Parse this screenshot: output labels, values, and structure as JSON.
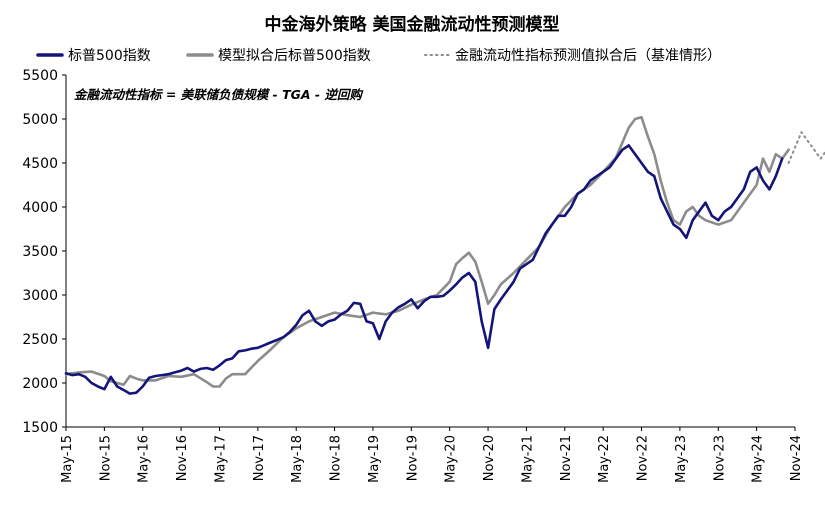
{
  "chart_data": {
    "type": "line",
    "title": "中金海外策略 美国金融流动性预测模型",
    "annotation": "金融流动性指标 = 美联储负债规模 - TGA - 逆回购",
    "ylim": [
      1500,
      5500
    ],
    "yticks": [
      1500,
      2000,
      2500,
      3000,
      3500,
      4000,
      4500,
      5000,
      5500
    ],
    "xticks": [
      "May-15",
      "Nov-15",
      "May-16",
      "Nov-16",
      "May-17",
      "Nov-17",
      "May-18",
      "Nov-18",
      "May-19",
      "Nov-19",
      "May-20",
      "Nov-20",
      "May-21",
      "Nov-21",
      "May-22",
      "Nov-22",
      "May-23",
      "Nov-23",
      "May-24",
      "Nov-24"
    ],
    "legend_position": "top",
    "grid": false,
    "series": [
      {
        "name": "标普500指数",
        "color": "#14147a",
        "style": "solid",
        "points": [
          [
            0,
            2110
          ],
          [
            0.5,
            2090
          ],
          [
            1,
            2100
          ],
          [
            1.5,
            2070
          ],
          [
            2,
            2000
          ],
          [
            2.5,
            1960
          ],
          [
            3,
            1930
          ],
          [
            3.5,
            2070
          ],
          [
            4,
            1960
          ],
          [
            4.5,
            1920
          ],
          [
            5,
            1880
          ],
          [
            5.5,
            1890
          ],
          [
            6,
            1960
          ],
          [
            6.5,
            2060
          ],
          [
            7,
            2080
          ],
          [
            7.5,
            2090
          ],
          [
            8,
            2100
          ],
          [
            8.5,
            2120
          ],
          [
            9,
            2140
          ],
          [
            9.5,
            2170
          ],
          [
            10,
            2130
          ],
          [
            10.5,
            2160
          ],
          [
            11,
            2170
          ],
          [
            11.5,
            2150
          ],
          [
            12,
            2200
          ],
          [
            12.5,
            2260
          ],
          [
            13,
            2280
          ],
          [
            13.5,
            2360
          ],
          [
            14,
            2370
          ],
          [
            14.5,
            2390
          ],
          [
            15,
            2400
          ],
          [
            15.5,
            2430
          ],
          [
            16,
            2460
          ],
          [
            16.5,
            2490
          ],
          [
            17,
            2520
          ],
          [
            17.5,
            2580
          ],
          [
            18,
            2660
          ],
          [
            18.5,
            2770
          ],
          [
            19,
            2820
          ],
          [
            19.5,
            2700
          ],
          [
            20,
            2650
          ],
          [
            20.5,
            2700
          ],
          [
            21,
            2720
          ],
          [
            21.5,
            2780
          ],
          [
            22,
            2820
          ],
          [
            22.5,
            2910
          ],
          [
            23,
            2900
          ],
          [
            23.5,
            2700
          ],
          [
            24,
            2680
          ],
          [
            24.5,
            2500
          ],
          [
            25,
            2700
          ],
          [
            25.5,
            2800
          ],
          [
            26,
            2860
          ],
          [
            26.5,
            2900
          ],
          [
            27,
            2950
          ],
          [
            27.5,
            2850
          ],
          [
            28,
            2930
          ],
          [
            28.5,
            2980
          ],
          [
            29,
            2980
          ],
          [
            29.5,
            2990
          ],
          [
            30,
            3050
          ],
          [
            30.5,
            3120
          ],
          [
            31,
            3200
          ],
          [
            31.5,
            3250
          ],
          [
            32,
            3150
          ],
          [
            32.5,
            2700
          ],
          [
            33,
            2400
          ],
          [
            33.5,
            2840
          ],
          [
            34,
            2950
          ],
          [
            34.5,
            3050
          ],
          [
            35,
            3150
          ],
          [
            35.5,
            3300
          ],
          [
            36,
            3350
          ],
          [
            36.5,
            3400
          ],
          [
            37,
            3550
          ],
          [
            37.5,
            3700
          ],
          [
            38,
            3800
          ],
          [
            38.5,
            3900
          ],
          [
            39,
            3900
          ],
          [
            39.5,
            4000
          ],
          [
            40,
            4150
          ],
          [
            40.5,
            4200
          ],
          [
            41,
            4300
          ],
          [
            41.5,
            4350
          ],
          [
            42,
            4400
          ],
          [
            42.5,
            4450
          ],
          [
            43,
            4550
          ],
          [
            43.5,
            4650
          ],
          [
            44,
            4700
          ],
          [
            44.5,
            4600
          ],
          [
            45,
            4500
          ],
          [
            45.5,
            4400
          ],
          [
            46,
            4350
          ],
          [
            46.5,
            4100
          ],
          [
            47,
            3950
          ],
          [
            47.5,
            3800
          ],
          [
            48,
            3750
          ],
          [
            48.5,
            3650
          ],
          [
            49,
            3850
          ],
          [
            49.5,
            3950
          ],
          [
            50,
            4050
          ],
          [
            50.5,
            3900
          ],
          [
            51,
            3850
          ],
          [
            51.5,
            3950
          ],
          [
            52,
            4000
          ],
          [
            52.5,
            4100
          ],
          [
            53,
            4200
          ],
          [
            53.5,
            4400
          ],
          [
            54,
            4450
          ],
          [
            54.5,
            4300
          ],
          [
            55,
            4200
          ],
          [
            55.5,
            4350
          ],
          [
            56,
            4550
          ]
        ]
      },
      {
        "name": "模型拟合后标普500指数",
        "color": "#8c8c8c",
        "style": "solid",
        "points": [
          [
            0,
            2100
          ],
          [
            1,
            2120
          ],
          [
            2,
            2130
          ],
          [
            3,
            2080
          ],
          [
            3.5,
            2020
          ],
          [
            4,
            2000
          ],
          [
            4.5,
            1980
          ],
          [
            5,
            2080
          ],
          [
            5.5,
            2050
          ],
          [
            6,
            2030
          ],
          [
            7,
            2030
          ],
          [
            8,
            2080
          ],
          [
            9,
            2070
          ],
          [
            10,
            2100
          ],
          [
            11,
            2010
          ],
          [
            11.5,
            1960
          ],
          [
            12,
            1960
          ],
          [
            12.5,
            2050
          ],
          [
            13,
            2100
          ],
          [
            14,
            2100
          ],
          [
            15,
            2250
          ],
          [
            16,
            2380
          ],
          [
            17,
            2520
          ],
          [
            18,
            2620
          ],
          [
            19,
            2700
          ],
          [
            20,
            2750
          ],
          [
            21,
            2800
          ],
          [
            22,
            2770
          ],
          [
            23,
            2750
          ],
          [
            24,
            2800
          ],
          [
            25,
            2780
          ],
          [
            26,
            2820
          ],
          [
            27,
            2890
          ],
          [
            28,
            2950
          ],
          [
            29,
            3000
          ],
          [
            30,
            3150
          ],
          [
            30.5,
            3350
          ],
          [
            31,
            3420
          ],
          [
            31.5,
            3480
          ],
          [
            32,
            3380
          ],
          [
            32.5,
            3150
          ],
          [
            33,
            2900
          ],
          [
            33.5,
            3000
          ],
          [
            34,
            3120
          ],
          [
            35,
            3250
          ],
          [
            36,
            3400
          ],
          [
            37,
            3550
          ],
          [
            38,
            3800
          ],
          [
            39,
            4000
          ],
          [
            40,
            4150
          ],
          [
            41,
            4250
          ],
          [
            42,
            4400
          ],
          [
            43,
            4560
          ],
          [
            44,
            4900
          ],
          [
            44.5,
            5000
          ],
          [
            45,
            5020
          ],
          [
            45.5,
            4800
          ],
          [
            46,
            4600
          ],
          [
            46.5,
            4300
          ],
          [
            47,
            4050
          ],
          [
            47.5,
            3850
          ],
          [
            48,
            3800
          ],
          [
            48.5,
            3950
          ],
          [
            49,
            4000
          ],
          [
            49.5,
            3900
          ],
          [
            50,
            3850
          ],
          [
            51,
            3800
          ],
          [
            52,
            3850
          ],
          [
            53,
            4050
          ],
          [
            54,
            4250
          ],
          [
            54.5,
            4550
          ],
          [
            55,
            4400
          ],
          [
            55.5,
            4600
          ],
          [
            56,
            4550
          ],
          [
            56.5,
            4650
          ]
        ]
      },
      {
        "name": "金融流动性指标预测值拟合后（基准情形）",
        "color": "#8c8c8c",
        "style": "dotted",
        "points": [
          [
            56.5,
            4500
          ],
          [
            57.5,
            4850
          ],
          [
            59,
            4550
          ],
          [
            61,
            4950
          ],
          [
            63,
            4300
          ]
        ]
      }
    ]
  }
}
